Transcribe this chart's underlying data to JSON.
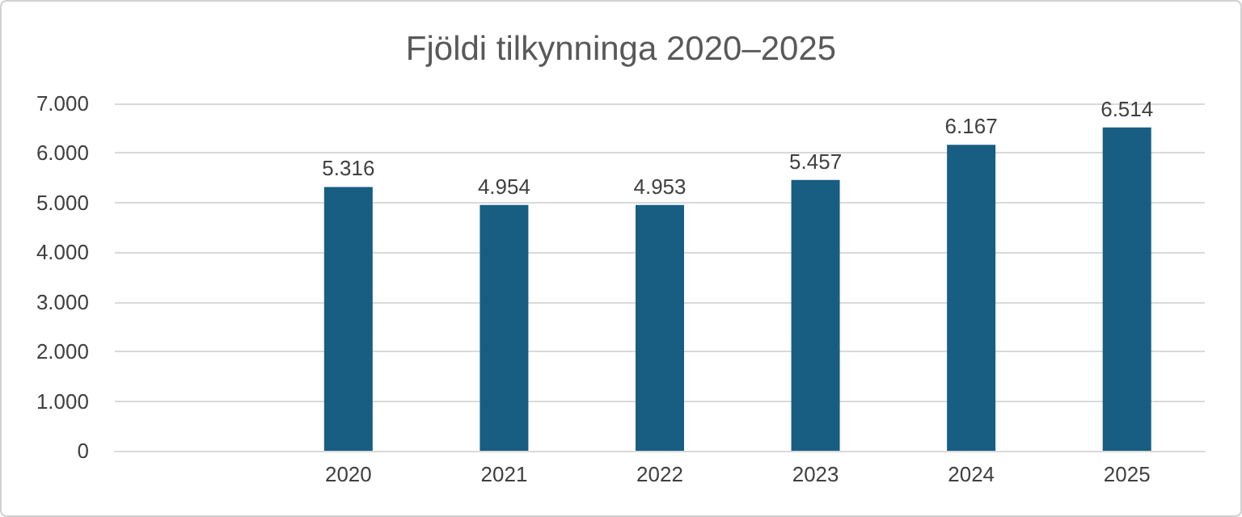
{
  "chart_data": {
    "type": "bar",
    "title": "Fjöldi tilkynninga 2020–2025",
    "categories": [
      null,
      "2020",
      "2021",
      "2022",
      "2023",
      "2024",
      "2025"
    ],
    "values": [
      null,
      5316,
      4954,
      4953,
      5457,
      6167,
      6514
    ],
    "value_labels": [
      null,
      "5.316",
      "4.954",
      "4.953",
      "5.457",
      "6.167",
      "6.514"
    ],
    "color": "#175e82",
    "ylim": [
      0,
      7000
    ],
    "yticks": [
      {
        "value": 0,
        "label": "0"
      },
      {
        "value": 1000,
        "label": "1.000"
      },
      {
        "value": 2000,
        "label": "2.000"
      },
      {
        "value": 3000,
        "label": "3.000"
      },
      {
        "value": 4000,
        "label": "4.000"
      },
      {
        "value": 5000,
        "label": "5.000"
      },
      {
        "value": 6000,
        "label": "6.000"
      },
      {
        "value": 7000,
        "label": "7.000"
      }
    ],
    "grid": true
  }
}
